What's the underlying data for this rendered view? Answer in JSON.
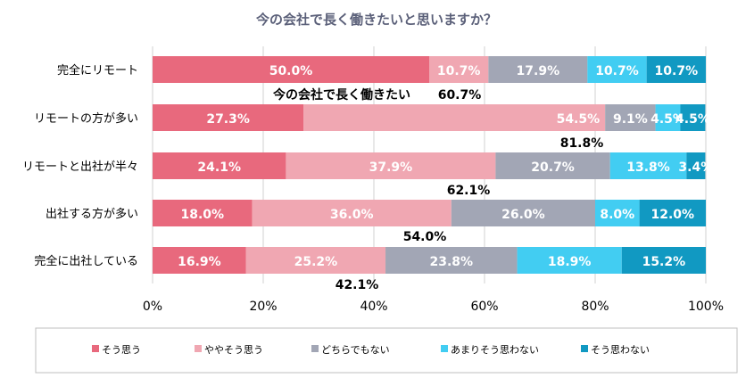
{
  "chart_data": {
    "type": "bar",
    "orientation": "horizontal",
    "stacked": true,
    "title": "今の会社で長く働きたいと思いますか？",
    "categories": [
      "完全にリモート",
      "リモートの方が多い",
      "リモートと出社が半々",
      "出社する方が多い",
      "完全に出社している"
    ],
    "series": [
      {
        "name": "そう思う",
        "color": "#E8697D",
        "values": [
          50.0,
          27.3,
          24.1,
          18.0,
          16.9
        ],
        "labels": [
          "50.0%",
          "27.3%",
          "24.1%",
          "18.0%",
          "16.9%"
        ]
      },
      {
        "name": "ややそう思う",
        "color": "#F0A7B2",
        "values": [
          10.7,
          54.5,
          37.9,
          36.0,
          25.2
        ],
        "labels": [
          "10.7%",
          "54.5%",
          "37.9%",
          "36.0%",
          "25.2%"
        ]
      },
      {
        "name": "どちらでもない",
        "color": "#A2A6B5",
        "values": [
          17.9,
          9.1,
          20.7,
          26.0,
          23.8
        ],
        "labels": [
          "17.9%",
          "9.1%",
          "20.7%",
          "26.0%",
          "23.8%"
        ]
      },
      {
        "name": "あまりそう思わない",
        "color": "#42CDF2",
        "values": [
          10.7,
          4.5,
          13.8,
          8.0,
          18.9
        ],
        "labels": [
          "10.7%",
          "4.5%",
          "13.8%",
          "8.0%",
          "18.9%"
        ]
      },
      {
        "name": "そう思わない",
        "color": "#1199C2",
        "values": [
          10.7,
          4.5,
          3.4,
          12.0,
          15.2
        ],
        "labels": [
          "10.7%",
          "4.5%",
          "3.4%",
          "12.0%",
          "15.2%"
        ]
      }
    ],
    "totals": [
      {
        "value": 60.7,
        "label": "60.7%"
      },
      {
        "value": 81.8,
        "label": "81.8%"
      },
      {
        "value": 62.1,
        "label": "62.1%"
      },
      {
        "value": 54.0,
        "label": "54.0%"
      },
      {
        "value": 42.1,
        "label": "42.1%"
      }
    ],
    "annotation": "今の会社で長く働きたい",
    "xlim": [
      0,
      100
    ],
    "xticks": [
      0,
      20,
      40,
      60,
      80,
      100
    ],
    "xtick_labels": [
      "0%",
      "20%",
      "40%",
      "60%",
      "80%",
      "100%"
    ],
    "grid": true,
    "legend_position": "bottom"
  }
}
